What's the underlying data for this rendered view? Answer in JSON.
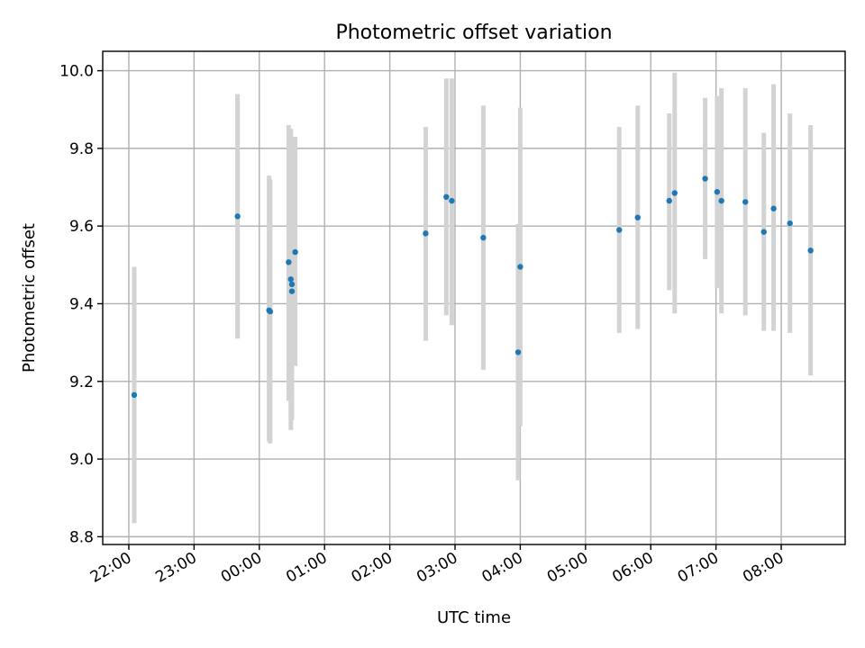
{
  "chart_data": {
    "type": "scatter",
    "title": "Photometric offset variation",
    "xlabel": "UTC time",
    "ylabel": "Photometric offset",
    "x_axis": {
      "min_hours": 21.6,
      "max_hours": 32.98,
      "ticks": [
        22,
        23,
        24,
        25,
        26,
        27,
        28,
        29,
        30,
        31,
        32
      ],
      "tick_labels": [
        "22:00",
        "23:00",
        "00:00",
        "01:00",
        "02:00",
        "03:00",
        "04:00",
        "05:00",
        "06:00",
        "07:00",
        "08:00"
      ]
    },
    "ylim": [
      8.78,
      10.05
    ],
    "y_ticks": [
      8.8,
      9.0,
      9.2,
      9.4,
      9.6,
      9.8,
      10.0
    ],
    "y_tick_labels": [
      "8.8",
      "9.0",
      "9.2",
      "9.4",
      "9.6",
      "9.8",
      "10.0"
    ],
    "grid": true,
    "colors": {
      "point": "#1f77b4",
      "errorbar": "#d3d3d3",
      "grid": "#b0b0b0"
    },
    "points": [
      {
        "x": "22:05",
        "y": 9.165,
        "lo": 8.835,
        "hi": 9.495
      },
      {
        "x": "23:40",
        "y": 9.625,
        "lo": 9.31,
        "hi": 9.94
      },
      {
        "x": "00:09",
        "y": 9.383,
        "lo": 9.045,
        "hi": 9.73
      },
      {
        "x": "00:10",
        "y": 9.38,
        "lo": 9.04,
        "hi": 9.72
      },
      {
        "x": "00:27",
        "y": 9.507,
        "lo": 9.15,
        "hi": 9.86
      },
      {
        "x": "00:29",
        "y": 9.463,
        "lo": 9.075,
        "hi": 9.85
      },
      {
        "x": "00:30",
        "y": 9.45,
        "lo": 9.11,
        "hi": 9.79
      },
      {
        "x": "00:30",
        "y": 9.432,
        "lo": 9.1,
        "hi": 9.76
      },
      {
        "x": "00:33",
        "y": 9.533,
        "lo": 9.24,
        "hi": 9.83
      },
      {
        "x": "02:33",
        "y": 9.581,
        "lo": 9.305,
        "hi": 9.855
      },
      {
        "x": "02:52",
        "y": 9.675,
        "lo": 9.37,
        "hi": 9.98
      },
      {
        "x": "02:57",
        "y": 9.665,
        "lo": 9.345,
        "hi": 9.98
      },
      {
        "x": "03:26",
        "y": 9.57,
        "lo": 9.23,
        "hi": 9.91
      },
      {
        "x": "03:58",
        "y": 9.275,
        "lo": 8.945,
        "hi": 9.605
      },
      {
        "x": "04:00",
        "y": 9.495,
        "lo": 9.085,
        "hi": 9.905
      },
      {
        "x": "05:31",
        "y": 9.59,
        "lo": 9.325,
        "hi": 9.855
      },
      {
        "x": "05:48",
        "y": 9.622,
        "lo": 9.335,
        "hi": 9.91
      },
      {
        "x": "06:17",
        "y": 9.665,
        "lo": 9.435,
        "hi": 9.89
      },
      {
        "x": "06:22",
        "y": 9.685,
        "lo": 9.375,
        "hi": 9.995
      },
      {
        "x": "06:50",
        "y": 9.722,
        "lo": 9.515,
        "hi": 9.93
      },
      {
        "x": "07:01",
        "y": 9.688,
        "lo": 9.44,
        "hi": 9.935
      },
      {
        "x": "07:05",
        "y": 9.665,
        "lo": 9.375,
        "hi": 9.955
      },
      {
        "x": "07:27",
        "y": 9.662,
        "lo": 9.37,
        "hi": 9.955
      },
      {
        "x": "07:44",
        "y": 9.585,
        "lo": 9.33,
        "hi": 9.84
      },
      {
        "x": "07:53",
        "y": 9.645,
        "lo": 9.33,
        "hi": 9.965
      },
      {
        "x": "08:08",
        "y": 9.607,
        "lo": 9.325,
        "hi": 9.89
      },
      {
        "x": "08:27",
        "y": 9.537,
        "lo": 9.215,
        "hi": 9.86
      }
    ]
  }
}
